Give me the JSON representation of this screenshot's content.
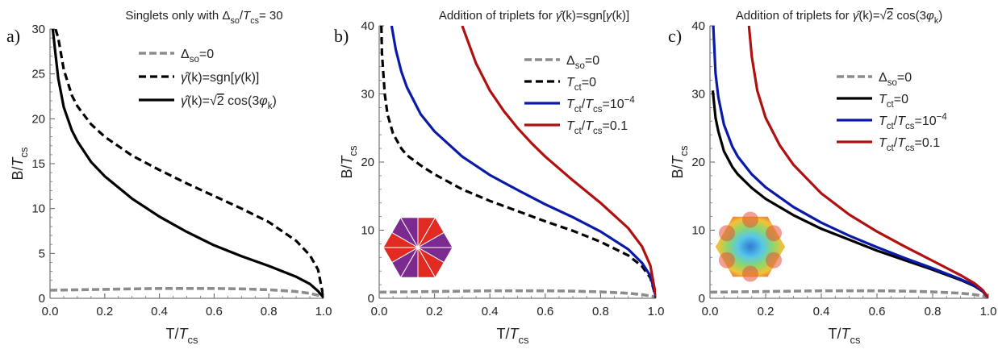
{
  "panels": [
    {
      "letter": "a)",
      "title_parts": [
        "Singlets only with ",
        "Δ",
        "so",
        "/",
        "T",
        "cs",
        "= 30"
      ],
      "xlabel_parts": [
        "T/",
        "T",
        "cs"
      ],
      "ylabel_parts": [
        "B/",
        "T",
        "cs"
      ],
      "xticks": [
        "0.0",
        "0.2",
        "0.4",
        "0.6",
        "0.8",
        "1.0"
      ],
      "yticks": [
        "0",
        "5",
        "10",
        "15",
        "20",
        "25",
        "30"
      ],
      "legend": [
        {
          "parts": [
            "Δ",
            "so",
            "=0"
          ]
        },
        {
          "parts": [
            "γ̂",
            "(k)=sgn[",
            "γ",
            "(k)]"
          ]
        },
        {
          "parts": [
            "γ̂",
            "(k)=",
            "√2",
            " cos(3",
            "φ",
            "k",
            ")"
          ]
        }
      ],
      "inset": ""
    },
    {
      "letter": "b)",
      "title_parts": [
        "Addition of triplets for ",
        "γ̂",
        "(k)=sgn[",
        "γ",
        "(k)]"
      ],
      "xlabel_parts": [
        "T/",
        "T",
        "cs"
      ],
      "ylabel_parts": [
        "B/",
        "T",
        "cs"
      ],
      "xticks": [
        "0.0",
        "0.2",
        "0.4",
        "0.6",
        "0.8",
        "1.0"
      ],
      "yticks": [
        "0",
        "10",
        "20",
        "30",
        "40"
      ],
      "legend": [
        {
          "parts": [
            "Δ",
            "so",
            "=0"
          ]
        },
        {
          "parts": [
            "T",
            "ct",
            "=0"
          ]
        },
        {
          "parts": [
            "T",
            "ct",
            "/",
            "T",
            "cs",
            "=10",
            "−4"
          ]
        },
        {
          "parts": [
            "T",
            "ct",
            "/",
            "T",
            "cs",
            "=0.1"
          ]
        }
      ],
      "inset": "hexagon-sectors"
    },
    {
      "letter": "c)",
      "title_parts": [
        "Addition of triplets for ",
        "γ̂",
        "(k)=",
        "√2",
        " cos(3",
        "φ",
        "k",
        ")"
      ],
      "xlabel_parts": [
        "T/",
        "T",
        "cs"
      ],
      "ylabel_parts": [
        "B/",
        "T",
        "cs"
      ],
      "xticks": [
        "0.0",
        "0.2",
        "0.4",
        "0.6",
        "0.8",
        "1.0"
      ],
      "yticks": [
        "0",
        "10",
        "20",
        "30",
        "40"
      ],
      "legend": [
        {
          "parts": [
            "Δ",
            "so",
            "=0"
          ]
        },
        {
          "parts": [
            "T",
            "ct",
            "=0"
          ]
        },
        {
          "parts": [
            "T",
            "ct",
            "/",
            "T",
            "cs",
            "=10",
            "−4"
          ]
        },
        {
          "parts": [
            "T",
            "ct",
            "/",
            "T",
            "cs",
            "=0.1"
          ]
        }
      ],
      "inset": "hexagon-gradient"
    }
  ],
  "chart_data": [
    {
      "type": "line",
      "xlim": [
        0,
        1
      ],
      "ylim": [
        0,
        30
      ],
      "series": [
        {
          "name": "Δso=0",
          "color": "#8c8c8c",
          "style": "dashed-gray",
          "x": [
            0.0,
            0.1,
            0.2,
            0.3,
            0.4,
            0.5,
            0.6,
            0.7,
            0.8,
            0.9,
            0.95,
            1.0
          ],
          "y": [
            0.9,
            0.95,
            1.0,
            1.05,
            1.1,
            1.1,
            1.1,
            1.05,
            0.95,
            0.75,
            0.55,
            0.2
          ]
        },
        {
          "name": "γ̂(k)=sgn[γ(k)]",
          "color": "#000000",
          "style": "dashed",
          "x": [
            0.02,
            0.03,
            0.05,
            0.08,
            0.1,
            0.15,
            0.2,
            0.3,
            0.4,
            0.5,
            0.6,
            0.7,
            0.8,
            0.9,
            0.95,
            0.98,
            1.0
          ],
          "y": [
            30,
            29,
            25.5,
            22.6,
            21.4,
            19.4,
            18.0,
            15.9,
            14.3,
            12.8,
            11.4,
            10.0,
            8.5,
            6.4,
            4.8,
            3.2,
            0.1
          ]
        },
        {
          "name": "γ̂(k)=√2cos(3φk)",
          "color": "#000000",
          "style": "solid",
          "x": [
            0.01,
            0.02,
            0.03,
            0.05,
            0.08,
            0.1,
            0.15,
            0.2,
            0.3,
            0.4,
            0.5,
            0.6,
            0.7,
            0.8,
            0.9,
            0.95,
            0.98,
            1.0
          ],
          "y": [
            30,
            27.2,
            24.5,
            21.3,
            18.7,
            17.5,
            15.2,
            13.6,
            11.1,
            9.1,
            7.4,
            5.9,
            4.7,
            3.6,
            2.4,
            1.6,
            0.8,
            0.1
          ]
        }
      ]
    },
    {
      "type": "line",
      "xlim": [
        0,
        1
      ],
      "ylim": [
        0,
        40
      ],
      "series": [
        {
          "name": "Δso=0",
          "color": "#8c8c8c",
          "style": "dashed-gray",
          "x": [
            0.0,
            0.1,
            0.2,
            0.3,
            0.4,
            0.5,
            0.6,
            0.7,
            0.8,
            0.9,
            0.95,
            1.0
          ],
          "y": [
            0.9,
            0.95,
            1.0,
            1.05,
            1.1,
            1.1,
            1.1,
            1.05,
            0.95,
            0.75,
            0.55,
            0.2
          ]
        },
        {
          "name": "Tct=0",
          "color": "#000000",
          "style": "dashed",
          "x": [
            0.008,
            0.01,
            0.02,
            0.03,
            0.05,
            0.08,
            0.1,
            0.15,
            0.2,
            0.3,
            0.4,
            0.5,
            0.6,
            0.7,
            0.8,
            0.9,
            0.95,
            0.98,
            1.0
          ],
          "y": [
            40,
            36,
            30,
            27,
            24.2,
            22,
            21,
            19.5,
            18.2,
            16.0,
            14.3,
            12.8,
            11.3,
            9.9,
            8.3,
            6.3,
            4.7,
            3.0,
            0.1
          ]
        },
        {
          "name": "Tct/Tcs=10−4",
          "color": "#0a1aa8",
          "style": "solid",
          "x": [
            0.045,
            0.06,
            0.08,
            0.1,
            0.15,
            0.2,
            0.3,
            0.4,
            0.5,
            0.6,
            0.7,
            0.8,
            0.9,
            0.95,
            0.98,
            1.0
          ],
          "y": [
            40,
            36.5,
            33.3,
            31,
            27,
            24.5,
            20.8,
            18.1,
            15.9,
            13.8,
            11.9,
            9.8,
            7.2,
            5.2,
            3.3,
            0.2
          ]
        },
        {
          "name": "Tct/Tcs=0.1",
          "color": "#b01010",
          "style": "solid",
          "x": [
            0.3,
            0.35,
            0.4,
            0.45,
            0.5,
            0.55,
            0.6,
            0.7,
            0.8,
            0.9,
            0.95,
            0.98,
            1.0
          ],
          "y": [
            40,
            34.5,
            30.5,
            27.5,
            25.0,
            22.8,
            20.8,
            17.3,
            14.0,
            10.3,
            7.6,
            4.8,
            0.3
          ]
        }
      ]
    },
    {
      "type": "line",
      "xlim": [
        0,
        1
      ],
      "ylim": [
        0,
        40
      ],
      "series": [
        {
          "name": "Δso=0",
          "color": "#8c8c8c",
          "style": "dashed-gray",
          "x": [
            0.0,
            0.1,
            0.2,
            0.3,
            0.4,
            0.5,
            0.6,
            0.7,
            0.8,
            0.9,
            0.95,
            1.0
          ],
          "y": [
            0.9,
            0.95,
            1.0,
            1.05,
            1.1,
            1.1,
            1.1,
            1.05,
            0.95,
            0.75,
            0.55,
            0.2
          ]
        },
        {
          "name": "Tct=0",
          "color": "#000000",
          "style": "solid",
          "x": [
            0.01,
            0.02,
            0.03,
            0.05,
            0.08,
            0.1,
            0.15,
            0.2,
            0.3,
            0.4,
            0.5,
            0.6,
            0.7,
            0.8,
            0.9,
            0.95,
            0.98,
            1.0
          ],
          "y": [
            30.5,
            26.5,
            24.5,
            21.6,
            19.3,
            18.2,
            16.2,
            14.6,
            12.2,
            10.2,
            8.6,
            7.0,
            5.6,
            4.2,
            2.7,
            1.8,
            1.0,
            0.1
          ]
        },
        {
          "name": "Tct/Tcs=10−4",
          "color": "#0a1aa8",
          "style": "solid",
          "x": [
            0.012,
            0.02,
            0.03,
            0.05,
            0.08,
            0.1,
            0.15,
            0.2,
            0.3,
            0.4,
            0.5,
            0.6,
            0.7,
            0.8,
            0.9,
            0.95,
            0.98,
            1.0
          ],
          "y": [
            40,
            33,
            29.5,
            25.5,
            22.3,
            20.8,
            18.2,
            16.3,
            13.4,
            11.1,
            9.2,
            7.5,
            5.9,
            4.4,
            2.8,
            1.9,
            1.0,
            0.1
          ]
        },
        {
          "name": "Tct/Tcs=0.1",
          "color": "#b01010",
          "style": "solid",
          "x": [
            0.14,
            0.15,
            0.17,
            0.2,
            0.25,
            0.3,
            0.4,
            0.5,
            0.6,
            0.7,
            0.8,
            0.9,
            0.95,
            0.98,
            1.0
          ],
          "y": [
            40,
            35.5,
            30.5,
            26.5,
            22.5,
            19.6,
            15.4,
            12.3,
            9.8,
            7.6,
            5.5,
            3.4,
            2.2,
            1.2,
            0.1
          ]
        }
      ]
    }
  ]
}
